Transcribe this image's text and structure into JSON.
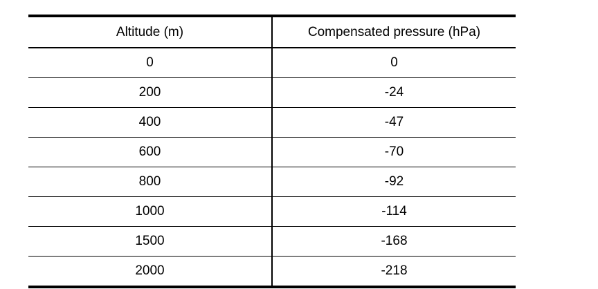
{
  "table": {
    "headers": [
      "Altitude (m)",
      "Compensated pressure (hPa)"
    ],
    "rows": [
      [
        "0",
        "0"
      ],
      [
        "200",
        "-24"
      ],
      [
        "400",
        "-47"
      ],
      [
        "600",
        "-70"
      ],
      [
        "800",
        "-92"
      ],
      [
        "1000",
        "-114"
      ],
      [
        "1500",
        "-168"
      ],
      [
        "2000",
        "-218"
      ]
    ]
  }
}
